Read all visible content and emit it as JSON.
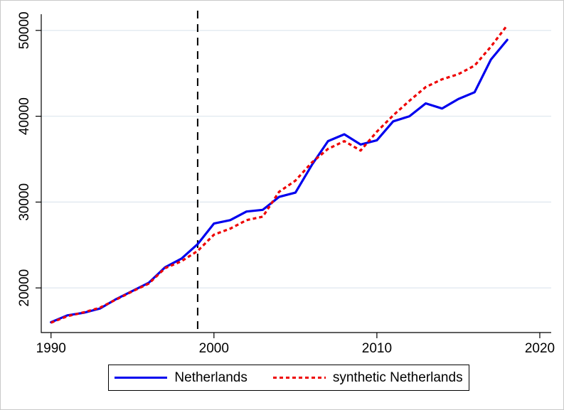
{
  "figure": {
    "background": "#ffffff",
    "border_color": "#c9c9c9"
  },
  "chart_data": {
    "type": "line",
    "title": "",
    "xlabel": "",
    "ylabel": "",
    "grid": "horizontal-only",
    "gridline_color": "#e2eaf0",
    "axis_color": "#000000",
    "xlim": [
      1989.4,
      2020.7
    ],
    "ylim": [
      14800,
      52300
    ],
    "x_ticks": [
      1990,
      2000,
      2010,
      2020
    ],
    "y_ticks": [
      20000,
      30000,
      40000,
      50000
    ],
    "treatment_line": {
      "x": 1999,
      "style": "dashed",
      "color": "#000000"
    },
    "x": [
      1990,
      1991,
      1992,
      1993,
      1994,
      1995,
      1996,
      1997,
      1998,
      1999,
      2000,
      2001,
      2002,
      2003,
      2004,
      2005,
      2006,
      2007,
      2008,
      2009,
      2010,
      2011,
      2012,
      2013,
      2014,
      2015,
      2016,
      2017,
      2018
    ],
    "series": [
      {
        "name": "Netherlands",
        "color": "#0000ee",
        "style": "solid",
        "values": [
          16000,
          16800,
          17100,
          17600,
          18700,
          19650,
          20600,
          22400,
          23400,
          25100,
          27500,
          27900,
          28900,
          29100,
          30600,
          31100,
          34300,
          37100,
          37900,
          36700,
          37200,
          39400,
          40000,
          41500,
          40900,
          42000,
          42800,
          46600,
          48900
        ]
      },
      {
        "name": "synthetic Netherlands",
        "color": "#ee0000",
        "style": "dashed",
        "values": [
          15950,
          16700,
          17150,
          17700,
          18650,
          19600,
          20500,
          22300,
          23100,
          24300,
          26200,
          26900,
          27900,
          28300,
          31200,
          32500,
          34600,
          36200,
          37100,
          36000,
          38200,
          40100,
          41800,
          43400,
          44300,
          44900,
          45900,
          48100,
          50600
        ]
      }
    ],
    "legend": {
      "position": "bottom-center",
      "entries": [
        "Netherlands",
        "synthetic Netherlands"
      ]
    }
  }
}
